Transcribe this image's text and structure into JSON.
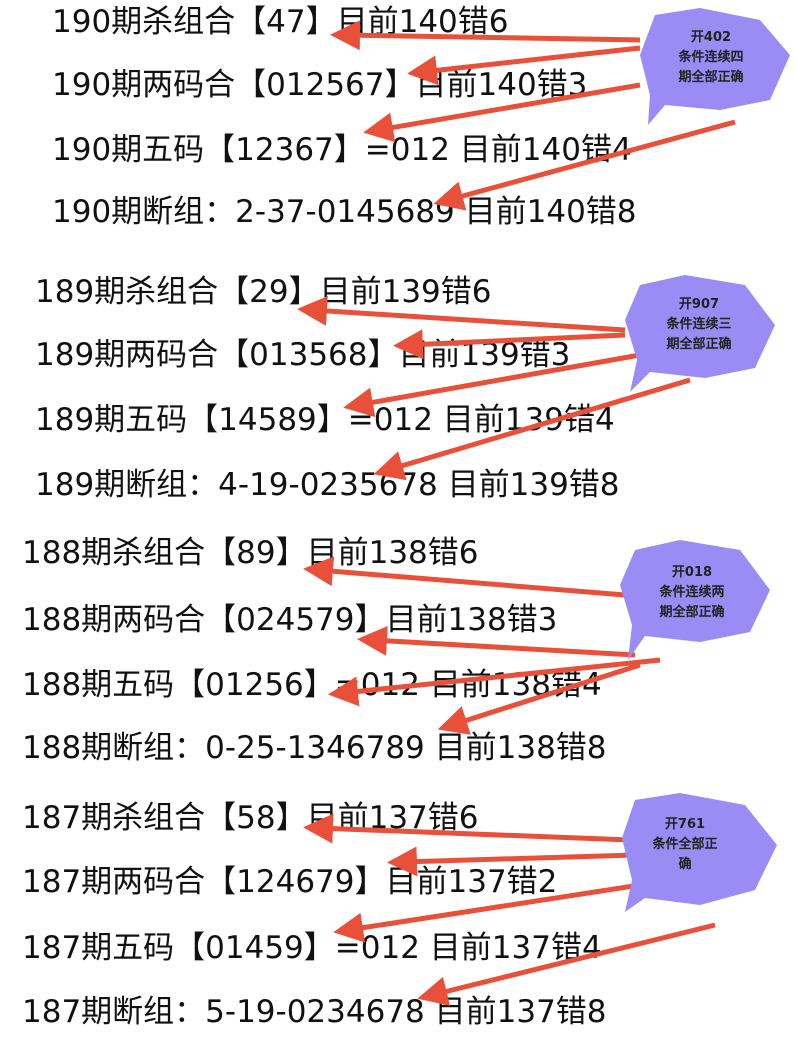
{
  "colors": {
    "arrow": "#e8503a",
    "bubble": "#9b8cf5",
    "bubble_dark": "#8274e6",
    "text": "#111111"
  },
  "groups": [
    {
      "lines": [
        "190期杀组合【47】目前140错6",
        "190期两码合【012567】目前140错3",
        "190期五码【12367】=012 目前140错4",
        "190期断组：2-37-0145689 目前140错8"
      ],
      "bubble": [
        "开402",
        "条件连续四",
        "期全部正确"
      ]
    },
    {
      "lines": [
        "189期杀组合【29】目前139错6",
        "189期两码合【013568】目前139错3",
        "189期五码【14589】=012 目前139错4",
        "189期断组：4-19-0235678 目前139错8"
      ],
      "bubble": [
        "开907",
        "条件连续三",
        "期全部正确"
      ]
    },
    {
      "lines": [
        "188期杀组合【89】目前138错6",
        "188期两码合【024579】目前138错3",
        "188期五码【01256】=012 目前138错4",
        "188期断组：0-25-1346789 目前138错8"
      ],
      "bubble": [
        "开018",
        "条件连续两",
        "期全部正确"
      ]
    },
    {
      "lines": [
        "187期杀组合【58】目前137错6",
        "187期两码合【124679】目前137错2",
        "187期五码【01459】=012 目前137错4",
        "187期断组：5-19-0234678 目前137错8"
      ],
      "bubble": [
        "开761",
        "条件全部正",
        "确"
      ]
    }
  ]
}
